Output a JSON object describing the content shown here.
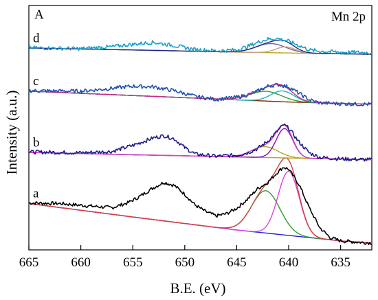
{
  "chart_data": {
    "type": "line",
    "panel_label": "A",
    "annotation": "Mn 2p",
    "xlabel": "B.E. (eV)",
    "ylabel": "Intensity (a.u.)",
    "xlim": [
      665,
      632
    ],
    "x_reversed": true,
    "y_units": "arbitrary",
    "ylim": [
      0,
      100
    ],
    "x_ticks": [
      665,
      660,
      655,
      650,
      645,
      640,
      635
    ],
    "y_ticks_shown": false,
    "grid": false,
    "legend": "none",
    "spectra": [
      {
        "label": "a",
        "offset": 0,
        "colors": {
          "raw": "#000000",
          "baseline": "#1f1fd6",
          "peak1": "#2e9a2e",
          "peak2": "#e040e0",
          "envelope": "#d44040"
        },
        "raw": [
          [
            665,
            18.5
          ],
          [
            662,
            18.2
          ],
          [
            659,
            17.0
          ],
          [
            657,
            16.3
          ],
          [
            655.5,
            18.5
          ],
          [
            654.5,
            21.0
          ],
          [
            653,
            25.5
          ],
          [
            652,
            28.0
          ],
          [
            651,
            26.5
          ],
          [
            650,
            22.5
          ],
          [
            649,
            17.5
          ],
          [
            648,
            14.5
          ],
          [
            647,
            12.5
          ],
          [
            646,
            13.5
          ],
          [
            645,
            16.0
          ],
          [
            644,
            20.0
          ],
          [
            643,
            25.0
          ],
          [
            642,
            28.0
          ],
          [
            641,
            33.0
          ],
          [
            640.5,
            35.0
          ],
          [
            640,
            34.0
          ],
          [
            639,
            27.0
          ],
          [
            638,
            16.0
          ],
          [
            637,
            7.0
          ],
          [
            636,
            2.5
          ],
          [
            635,
            1.0
          ],
          [
            633,
            0.3
          ],
          [
            632,
            0.0
          ]
        ],
        "baseline": [
          [
            665,
            18.2
          ],
          [
            655,
            12.0
          ],
          [
            645,
            6.0
          ],
          [
            640,
            3.5
          ],
          [
            635,
            1.0
          ],
          [
            632,
            0.0
          ]
        ],
        "peaks": [
          {
            "center": 642.2,
            "amplitude": 19.5,
            "fwhm": 3.2
          },
          {
            "center": 640.0,
            "amplitude": 29.5,
            "fwhm": 2.4
          }
        ]
      },
      {
        "label": "b",
        "offset": 38,
        "colors": {
          "raw": "#1a1a8c",
          "baseline": "#b8a020",
          "peak1": "#b8a020",
          "peak2": "#8b0fa0",
          "envelope": "#d440d4"
        },
        "raw": [
          [
            665,
            4.0
          ],
          [
            660,
            3.6
          ],
          [
            657,
            4.2
          ],
          [
            655,
            7.0
          ],
          [
            653,
            10.5
          ],
          [
            652,
            11.5
          ],
          [
            651,
            10.0
          ],
          [
            650,
            6.0
          ],
          [
            649,
            3.0
          ],
          [
            647,
            2.0
          ],
          [
            645,
            2.5
          ],
          [
            644,
            3.5
          ],
          [
            643,
            5.5
          ],
          [
            642,
            9.0
          ],
          [
            641,
            14.0
          ],
          [
            640.5,
            16.5
          ],
          [
            640,
            15.0
          ],
          [
            639,
            8.5
          ],
          [
            638,
            3.5
          ],
          [
            637,
            1.5
          ],
          [
            635,
            0.8
          ],
          [
            633,
            0.5
          ],
          [
            632,
            0.4
          ]
        ],
        "baseline": [
          [
            665,
            3.8
          ],
          [
            655,
            2.7
          ],
          [
            645,
            1.7
          ],
          [
            640,
            1.2
          ],
          [
            632,
            0.4
          ]
        ],
        "peaks": [
          {
            "center": 642.3,
            "amplitude": 5.0,
            "fwhm": 3.0
          },
          {
            "center": 640.4,
            "amplitude": 13.5,
            "fwhm": 1.9
          }
        ]
      },
      {
        "label": "c",
        "offset": 64,
        "colors": {
          "raw": "#1f4fb0",
          "baseline": "#7a2a00",
          "peak1": "#2ea02e",
          "peak2": "#18b3c8",
          "envelope": "#cc2a8c"
        },
        "raw": [
          [
            665,
            6.2
          ],
          [
            660,
            6.0
          ],
          [
            657,
            7.3
          ],
          [
            655,
            8.3
          ],
          [
            653,
            8.0
          ],
          [
            651,
            6.2
          ],
          [
            649,
            3.6
          ],
          [
            647,
            2.2
          ],
          [
            645,
            3.2
          ],
          [
            644,
            4.2
          ],
          [
            643,
            6.0
          ],
          [
            642,
            8.3
          ],
          [
            641,
            9.0
          ],
          [
            640,
            8.0
          ],
          [
            639,
            5.0
          ],
          [
            638,
            2.0
          ],
          [
            637,
            0.6
          ],
          [
            635,
            0.2
          ],
          [
            633,
            0.0
          ],
          [
            632,
            0.0
          ]
        ],
        "baseline": [
          [
            665,
            6.0
          ],
          [
            655,
            4.0
          ],
          [
            645,
            2.0
          ],
          [
            640,
            1.0
          ],
          [
            632,
            0.0
          ]
        ],
        "peaks": [
          {
            "center": 642.2,
            "amplitude": 4.5,
            "fwhm": 3.6
          },
          {
            "center": 640.6,
            "amplitude": 5.0,
            "fwhm": 2.6
          }
        ]
      },
      {
        "label": "d",
        "offset": 88,
        "colors": {
          "raw": "#1a9fc8",
          "baseline": "#b8a020",
          "peak1": "#7f5b86",
          "peak2": "#c8a080",
          "envelope": "#1a2a8c"
        },
        "raw": [
          [
            665,
            2.0
          ],
          [
            660,
            1.6
          ],
          [
            657,
            2.5
          ],
          [
            655,
            3.6
          ],
          [
            653,
            4.5
          ],
          [
            651,
            3.0
          ],
          [
            649,
            1.2
          ],
          [
            647,
            0.6
          ],
          [
            645,
            1.0
          ],
          [
            644,
            2.5
          ],
          [
            643,
            4.5
          ],
          [
            642,
            6.0
          ],
          [
            641,
            6.2
          ],
          [
            640,
            5.0
          ],
          [
            639,
            3.0
          ],
          [
            638,
            1.0
          ],
          [
            637,
            0.4
          ],
          [
            635,
            0.0
          ],
          [
            632,
            -0.3
          ]
        ],
        "baseline": [
          [
            665,
            1.9
          ],
          [
            655,
            1.0
          ],
          [
            645,
            0.0
          ],
          [
            640,
            -0.4
          ],
          [
            632,
            -1.0
          ]
        ],
        "peaks": [
          {
            "center": 641.7,
            "amplitude": 4.2,
            "fwhm": 3.4
          },
          {
            "center": 640.3,
            "amplitude": 2.8,
            "fwhm": 2.2
          }
        ]
      }
    ]
  }
}
